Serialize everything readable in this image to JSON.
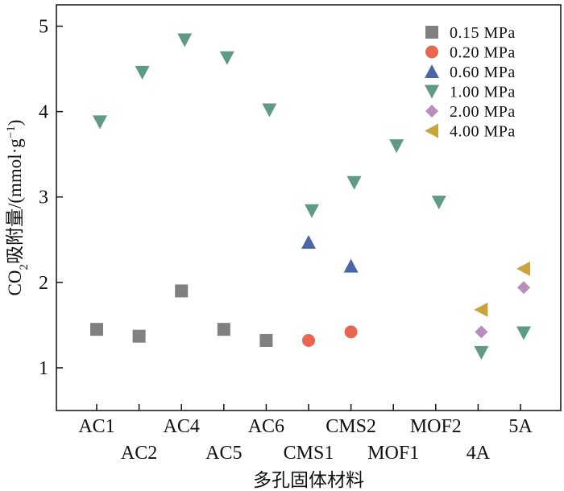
{
  "chart_data": {
    "type": "scatter",
    "title": "",
    "xlabel": "多孔固体材料",
    "ylabel_parts": {
      "main": "CO",
      "sub": "2",
      "middle": "吸附量/(mmol·g",
      "sup": "−1",
      "end": ")"
    },
    "categories": [
      "AC1",
      "AC2",
      "AC4",
      "AC5",
      "AC6",
      "CMS1",
      "CMS2",
      "MOF1",
      "MOF2",
      "4A",
      "5A"
    ],
    "ylim": [
      0.5,
      5.25
    ],
    "yticks": [
      1,
      2,
      3,
      4,
      5
    ],
    "grid": false,
    "legend_position": "top-right",
    "series": [
      {
        "name": "0.15 MPa",
        "marker": "square",
        "color": "#808080",
        "points": [
          {
            "x": "AC1",
            "y": 1.45
          },
          {
            "x": "AC2",
            "y": 1.37
          },
          {
            "x": "AC4",
            "y": 1.9
          },
          {
            "x": "AC5",
            "y": 1.45
          },
          {
            "x": "AC6",
            "y": 1.32
          }
        ]
      },
      {
        "name": "0.20 MPa",
        "marker": "circle",
        "color": "#e8664f",
        "points": [
          {
            "x": "CMS1",
            "y": 1.32
          },
          {
            "x": "CMS2",
            "y": 1.42
          }
        ]
      },
      {
        "name": "0.60 MPa",
        "marker": "triangle-up",
        "color": "#4a66a6",
        "points": [
          {
            "x": "CMS1",
            "y": 2.47
          },
          {
            "x": "CMS2",
            "y": 2.19
          }
        ]
      },
      {
        "name": "1.00 MPa",
        "marker": "triangle-down",
        "color": "#5e9a85",
        "points": [
          {
            "x": "AC1",
            "y": 3.88
          },
          {
            "x": "AC2",
            "y": 4.46
          },
          {
            "x": "AC4",
            "y": 4.84
          },
          {
            "x": "AC5",
            "y": 4.63
          },
          {
            "x": "AC6",
            "y": 4.02
          },
          {
            "x": "CMS1",
            "y": 2.84
          },
          {
            "x": "CMS2",
            "y": 3.17
          },
          {
            "x": "MOF1",
            "y": 3.6
          },
          {
            "x": "MOF2",
            "y": 2.94
          },
          {
            "x": "4A",
            "y": 1.18
          },
          {
            "x": "5A",
            "y": 1.41
          }
        ]
      },
      {
        "name": "2.00 MPa",
        "marker": "diamond",
        "color": "#b98dbd",
        "points": [
          {
            "x": "4A",
            "y": 1.42
          },
          {
            "x": "5A",
            "y": 1.94
          }
        ]
      },
      {
        "name": "4.00 MPa",
        "marker": "triangle-left",
        "color": "#c9a43e",
        "points": [
          {
            "x": "4A",
            "y": 1.68
          },
          {
            "x": "5A",
            "y": 2.16
          }
        ]
      }
    ]
  }
}
